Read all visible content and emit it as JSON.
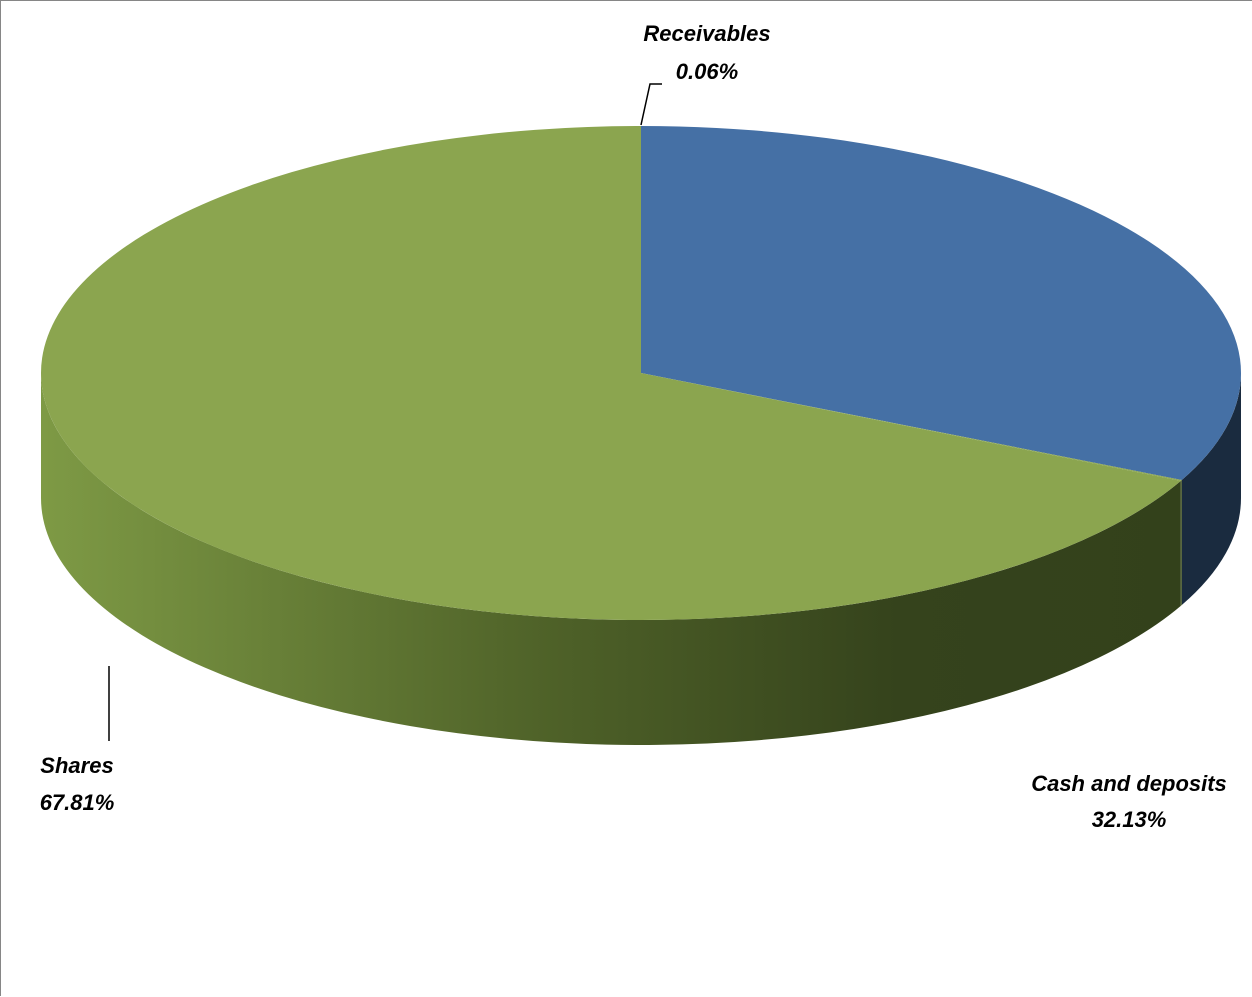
{
  "chart_data": {
    "type": "pie",
    "style": "3d",
    "slices": [
      {
        "label": "Cash and deposits",
        "value": 32.13,
        "value_label": "32.13%",
        "color": "#4570A5"
      },
      {
        "label": "Receivables",
        "value": 0.06,
        "value_label": "0.06%",
        "color": "#8BA54F"
      },
      {
        "label": "Shares",
        "value": 67.81,
        "value_label": "67.81%",
        "color": "#8BA54F"
      }
    ],
    "legend": "none",
    "label_position": "outside"
  }
}
